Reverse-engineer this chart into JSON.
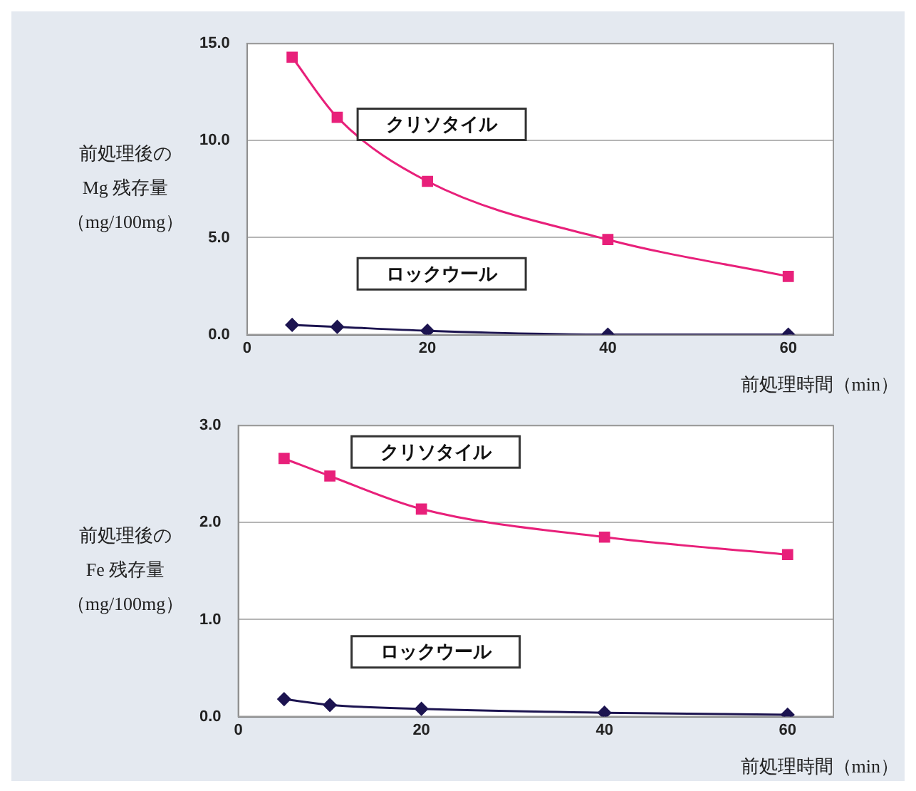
{
  "chart_data": [
    {
      "type": "line",
      "ylabel": "前処理後のMg 残存量（mg/100mg）",
      "xlabel": "前処理時間（min）",
      "xlim": [
        0,
        65
      ],
      "xticks": [
        0,
        20,
        40,
        60
      ],
      "ylim": [
        0,
        15
      ],
      "yticks": [
        {
          "value": 0,
          "label": "0.0"
        },
        {
          "value": 5,
          "label": "5.0"
        },
        {
          "value": 10,
          "label": "10.0"
        },
        {
          "value": 15,
          "label": "15.0"
        }
      ],
      "grid": "y",
      "x": [
        5,
        10,
        20,
        40,
        60
      ],
      "series": [
        {
          "name": "クリソタイル",
          "color": "#e8207a",
          "marker": "square",
          "values": [
            14.3,
            11.2,
            7.9,
            4.9,
            3.0
          ]
        },
        {
          "name": "ロックウール",
          "color": "#1c1450",
          "marker": "diamond",
          "values": [
            0.5,
            0.4,
            0.2,
            0.0,
            0.0
          ]
        }
      ]
    },
    {
      "type": "line",
      "ylabel": "前処理後のFe 残存量（mg/100mg）",
      "xlabel": "前処理時間（min）",
      "xlim": [
        0,
        65
      ],
      "xticks": [
        0,
        20,
        40,
        60
      ],
      "ylim": [
        0,
        3
      ],
      "yticks": [
        {
          "value": 0,
          "label": "0.0"
        },
        {
          "value": 1,
          "label": "1.0"
        },
        {
          "value": 2,
          "label": "2.0"
        },
        {
          "value": 3,
          "label": "3.0"
        }
      ],
      "grid": "y",
      "x": [
        5,
        10,
        20,
        40,
        60
      ],
      "series": [
        {
          "name": "クリソタイル",
          "color": "#e8207a",
          "marker": "square",
          "values": [
            2.66,
            2.48,
            2.14,
            1.85,
            1.67
          ]
        },
        {
          "name": "ロックウール",
          "color": "#1c1450",
          "marker": "diamond",
          "values": [
            0.18,
            0.12,
            0.08,
            0.04,
            0.02
          ]
        }
      ]
    }
  ]
}
